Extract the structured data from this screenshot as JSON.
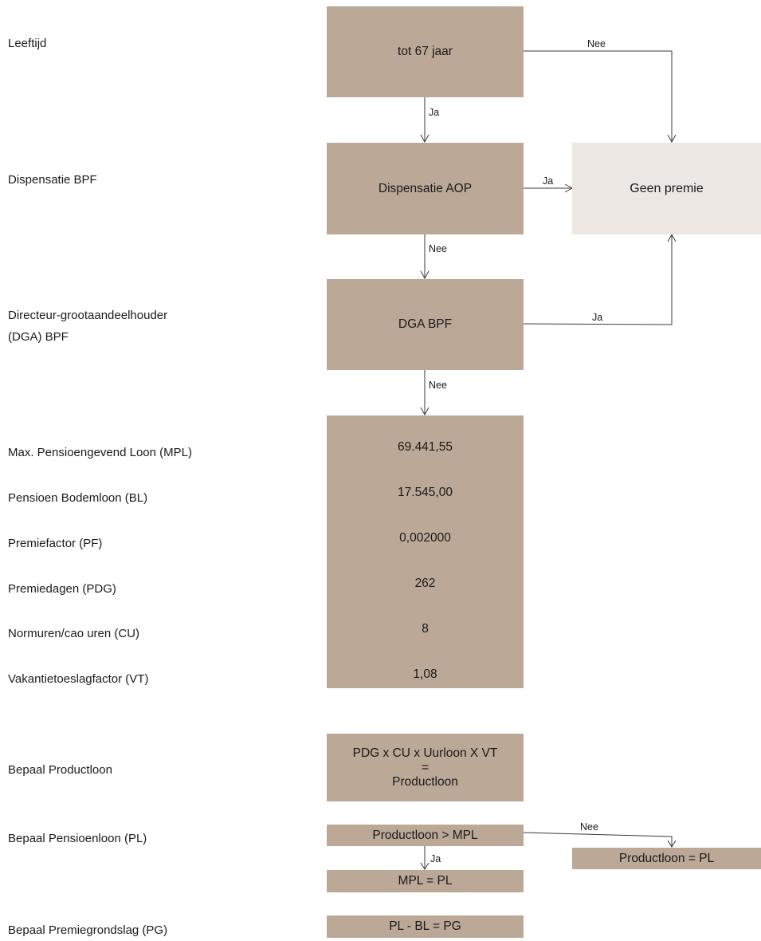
{
  "labels": {
    "leeftijd": "Leeftijd",
    "dispensatie_bpf": "Dispensatie BPF",
    "dga_line1": "Directeur-grootaandeelhouder",
    "dga_line2": "(DGA) BPF",
    "mpl": "Max. Pensioengevend Loon (MPL)",
    "bl": "Pensioen Bodemloon (BL)",
    "pf": "Premiefactor (PF)",
    "pdg": "Premiedagen (PDG)",
    "cu": "Normuren/cao uren (CU)",
    "vt": "Vakantietoeslagfactor (VT)",
    "productloon": "Bepaal Productloon",
    "pensioenloon": "Bepaal Pensioenloon (PL)",
    "premiegrondslag": "Bepaal Premiegrondslag (PG)"
  },
  "nodes": {
    "age": "tot 67 jaar",
    "aop": "Dispensatie AOP",
    "geen_premie": "Geen premie",
    "dga": "DGA BPF",
    "productloon_line1": "PDG x CU x Uurloon X VT",
    "productloon_line2": "=",
    "productloon_line3": "Productloon",
    "compare": "Productloon > MPL",
    "pl_no": "Productloon = PL",
    "pl_yes": "MPL = PL",
    "pg": "PL - BL = PG"
  },
  "values": {
    "mpl": "69.441,55",
    "bl": "17.545,00",
    "pf": "0,002000",
    "pdg": "262",
    "cu": "8",
    "vt": "1,08"
  },
  "edges": {
    "age_nee": "Nee",
    "age_ja": "Ja",
    "aop_ja": "Ja",
    "aop_nee": "Nee",
    "dga_ja": "Ja",
    "dga_nee": "Nee",
    "compare_nee": "Nee",
    "compare_ja": "Ja"
  },
  "colors": {
    "box_fill": "#bba897",
    "box_light_fill": "#ece7e2",
    "line": "#3a3a3a"
  }
}
